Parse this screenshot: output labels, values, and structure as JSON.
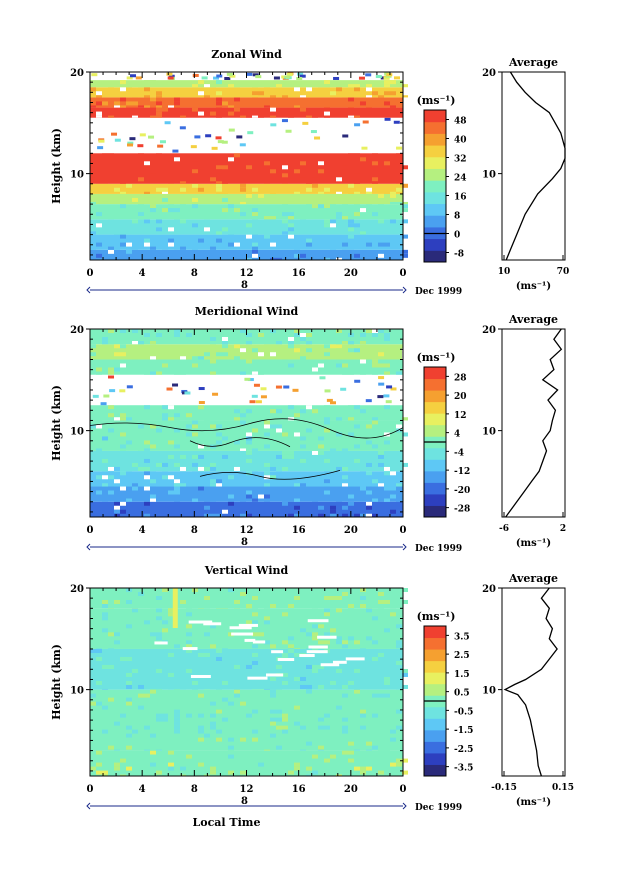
{
  "page": {
    "background": "#ffffff"
  },
  "colorscale": [
    "#2a2a7a",
    "#2d3fbf",
    "#3a6ee0",
    "#4aa0f0",
    "#5ec8f5",
    "#6ee3e0",
    "#7ef0c0",
    "#b5f080",
    "#e8f060",
    "#f5d040",
    "#f5a030",
    "#f57030",
    "#f04030"
  ],
  "shared": {
    "xticks": [
      "0",
      "4",
      "8",
      "12",
      "16",
      "20",
      "0"
    ],
    "date_mark": "8",
    "date_label": "Dec 1999",
    "x_axis_label": "Local Time",
    "y_axis_label": "Height (km)",
    "yticks": [
      "20",
      "10"
    ],
    "unit": "(ms⁻¹)",
    "avg_title": "Average"
  },
  "chart_data": [
    {
      "type": "heatmap",
      "title": "Zonal Wind",
      "xlabel": "",
      "ylabel": "Height (km)",
      "x": [
        0,
        4,
        8,
        12,
        16,
        20,
        0
      ],
      "xlim": [
        0,
        24
      ],
      "ylim": [
        1.5,
        20
      ],
      "colorbar": {
        "ticks": [
          "48",
          "40",
          "32",
          "24",
          "16",
          "8",
          "0",
          "-8"
        ],
        "range": [
          -12,
          52
        ]
      },
      "bands": [
        {
          "z0": 1.5,
          "z1": 2.5,
          "value": 4
        },
        {
          "z0": 2.5,
          "z1": 4,
          "value": 9
        },
        {
          "z0": 4,
          "z1": 5.5,
          "value": 14
        },
        {
          "z0": 5.5,
          "z1": 7,
          "value": 20
        },
        {
          "z0": 7,
          "z1": 8,
          "value": 26
        },
        {
          "z0": 8,
          "z1": 9,
          "value": 33
        },
        {
          "z0": 9,
          "z1": 12,
          "value": 50
        },
        {
          "z0": 12,
          "z1": 15.5,
          "value": null
        },
        {
          "z0": 15.5,
          "z1": 16.5,
          "value": 48
        },
        {
          "z0": 16.5,
          "z1": 17.5,
          "value": 44
        },
        {
          "z0": 17.5,
          "z1": 18.5,
          "value": 36
        },
        {
          "z0": 18.5,
          "z1": 19.2,
          "value": 26
        },
        {
          "z0": 19.2,
          "z1": 20,
          "value": null
        }
      ],
      "average": {
        "xticks": [
          "10",
          "70"
        ],
        "xlim": [
          10,
          70
        ],
        "z": [
          1.5,
          2.5,
          4,
          6,
          8,
          9.5,
          10.5,
          11.5,
          12.5,
          14,
          16,
          17,
          18,
          19,
          20
        ],
        "v": [
          14,
          18,
          24,
          32,
          44,
          58,
          66,
          70,
          70,
          66,
          55,
          42,
          32,
          24,
          18
        ]
      }
    },
    {
      "type": "heatmap",
      "title": "Meridional Wind",
      "xlabel": "",
      "ylabel": "Height (km)",
      "x": [
        0,
        4,
        8,
        12,
        16,
        20,
        0
      ],
      "xlim": [
        0,
        24
      ],
      "ylim": [
        1.5,
        20
      ],
      "colorbar": {
        "ticks": [
          "28",
          "20",
          "12",
          "4",
          "-4",
          "-12",
          "-20",
          "-28"
        ],
        "range": [
          -32,
          32
        ]
      },
      "bands": [
        {
          "z0": 1.5,
          "z1": 3,
          "value": -20
        },
        {
          "z0": 3,
          "z1": 4.5,
          "value": -13
        },
        {
          "z0": 4.5,
          "z1": 6,
          "value": -8
        },
        {
          "z0": 6,
          "z1": 8,
          "value": -4
        },
        {
          "z0": 8,
          "z1": 11,
          "value": -2
        },
        {
          "z0": 11,
          "z1": 12.5,
          "value": -1
        },
        {
          "z0": 12.5,
          "z1": 15.5,
          "value": null
        },
        {
          "z0": 15.5,
          "z1": 17,
          "value": 1
        },
        {
          "z0": 17,
          "z1": 18.5,
          "value": 3
        },
        {
          "z0": 18.5,
          "z1": 20,
          "value": -1
        }
      ],
      "average": {
        "xticks": [
          "-6",
          "2"
        ],
        "xlim": [
          -6,
          2.5
        ],
        "z": [
          1.5,
          2,
          3,
          4,
          5,
          6,
          7,
          8,
          9,
          10,
          11,
          12,
          13,
          14,
          15,
          16,
          17,
          18,
          19,
          20
        ],
        "v": [
          -5.5,
          -5,
          -4,
          -3,
          -2,
          -1,
          -0.5,
          0,
          -0.5,
          0.5,
          0.8,
          1.2,
          0.2,
          1.5,
          -0.5,
          1,
          0.5,
          2,
          1,
          2
        ]
      }
    },
    {
      "type": "heatmap",
      "title": "Vertical Wind",
      "xlabel": "Local Time",
      "ylabel": "Height (km)",
      "x": [
        0,
        4,
        8,
        12,
        16,
        20,
        0
      ],
      "xlim": [
        0,
        24
      ],
      "ylim": [
        1.5,
        20
      ],
      "colorbar": {
        "ticks": [
          "3.5",
          "2.5",
          "1.5",
          "0.5",
          "-0.5",
          "-1.5",
          "-2.5",
          "-3.5"
        ],
        "range": [
          -4,
          4
        ]
      },
      "bands": [
        {
          "z0": 1.5,
          "z1": 4,
          "value": 0.3
        },
        {
          "z0": 4,
          "z1": 10,
          "value": -0.2
        },
        {
          "z0": 10,
          "z1": 14,
          "value": -0.4
        },
        {
          "z0": 14,
          "z1": 18,
          "value": -0.1
        },
        {
          "z0": 18,
          "z1": 20,
          "value": 0.2
        }
      ],
      "average": {
        "xticks": [
          "-0.15",
          "0.15"
        ],
        "xlim": [
          -0.2,
          0.2
        ],
        "z": [
          1.5,
          2.5,
          4,
          5.5,
          7,
          8.5,
          9.5,
          10,
          10.5,
          11,
          12,
          13,
          14,
          15,
          16,
          17,
          18,
          19,
          20
        ],
        "v": [
          0.05,
          0.03,
          0.02,
          0,
          -0.02,
          -0.05,
          -0.1,
          -0.18,
          -0.12,
          -0.05,
          0.05,
          0.1,
          0.15,
          0.1,
          0.12,
          0.08,
          0.1,
          0.05,
          0.1
        ]
      }
    }
  ]
}
